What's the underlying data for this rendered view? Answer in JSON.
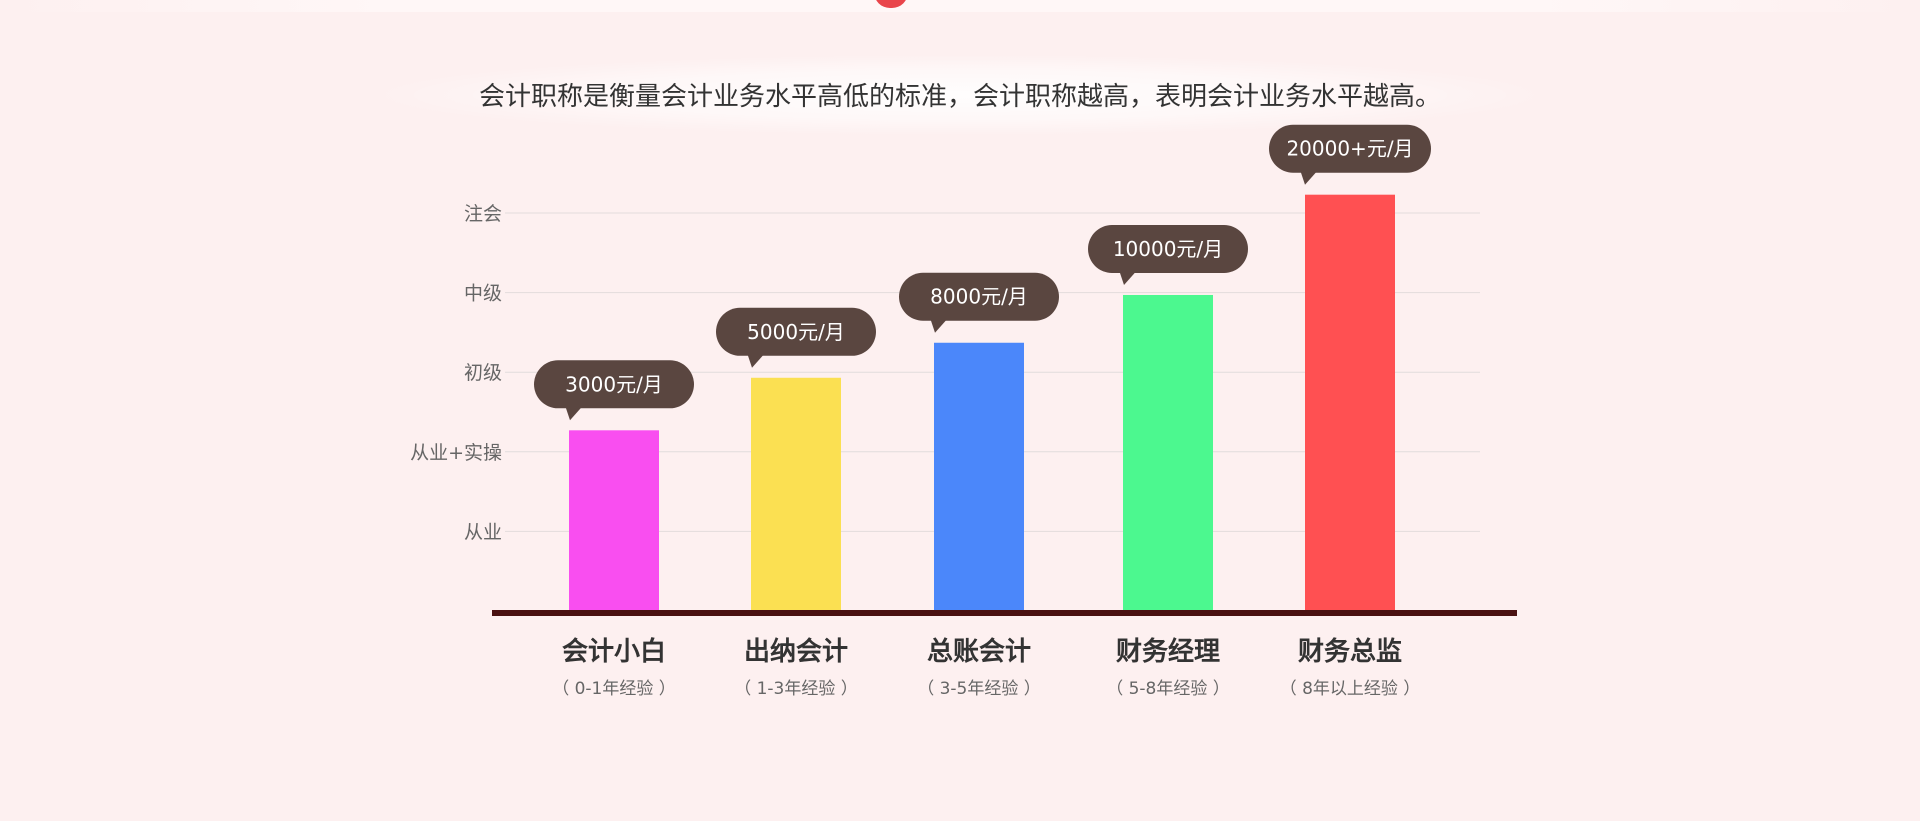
{
  "headline": "会计职称是衡量会计业务水平高低的标准，会计职称越高，表明会计业务水平越高。",
  "colors": {
    "background": "#fdf0f0",
    "axis": "#4a1111",
    "grid": "#e2dcdc",
    "bubble": "#5a4640",
    "top_marker": "#e9454b"
  },
  "chart_data": {
    "type": "bar",
    "title": "",
    "xlabel": "",
    "ylabel": "",
    "y_levels": [
      "从业",
      "从业+实操",
      "初级",
      "中级",
      "注会"
    ],
    "y_tick_values": [
      1,
      2,
      3,
      4,
      5
    ],
    "ylim": [
      0,
      5.4
    ],
    "grid": true,
    "categories": [
      "会计小白",
      "出纳会计",
      "总账会计",
      "财务经理",
      "财务总监"
    ],
    "subtitles": [
      "（ 0-1年经验 ）",
      "（ 1-3年经验 ）",
      "（ 3-5年经验 ）",
      "（ 5-8年经验 ）",
      "（ 8年以上经验 ）"
    ],
    "values": [
      2.27,
      2.93,
      3.37,
      3.97,
      5.23
    ],
    "labels": [
      "3000元/月",
      "5000元/月",
      "8000元/月",
      "10000元/月",
      "20000+元/月"
    ],
    "bar_colors": [
      "#f94ef0",
      "#fbe052",
      "#4b87fa",
      "#4cf88f",
      "#ff5052"
    ]
  }
}
